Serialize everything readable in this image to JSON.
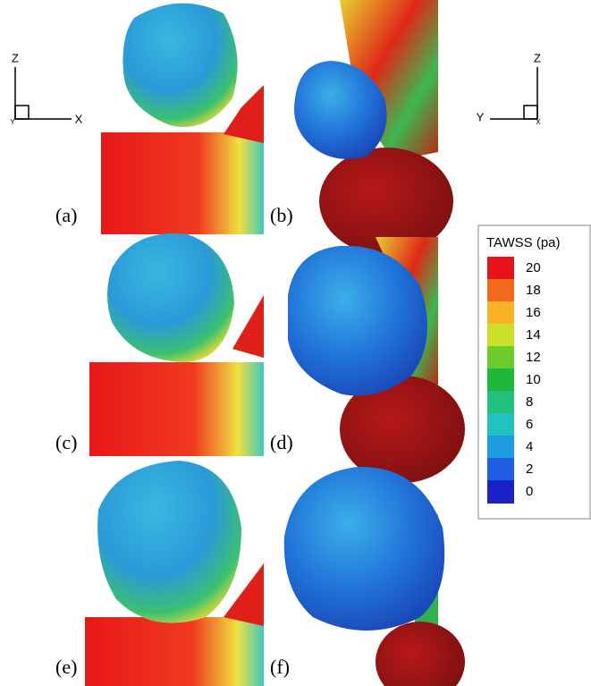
{
  "axes_left": {
    "z": "Z",
    "x": "X",
    "y": "Y"
  },
  "axes_right": {
    "z": "Z",
    "y": "Y",
    "x": "X"
  },
  "panels": [
    {
      "label": "(a)"
    },
    {
      "label": "(b)"
    },
    {
      "label": "(c)"
    },
    {
      "label": "(d)"
    },
    {
      "label": "(e)"
    },
    {
      "label": "(f)"
    }
  ],
  "legend": {
    "title": "TAWSS (pa)",
    "ticks": [
      20,
      18,
      16,
      14,
      12,
      10,
      8,
      6,
      4,
      2,
      0
    ],
    "colors": [
      "#e8141a",
      "#f26a1c",
      "#f9b12a",
      "#cbe02a",
      "#6ccc2c",
      "#1fb83c",
      "#22c07a",
      "#20c3c0",
      "#1e9ae0",
      "#1d5fe0",
      "#1a1fc6"
    ]
  }
}
